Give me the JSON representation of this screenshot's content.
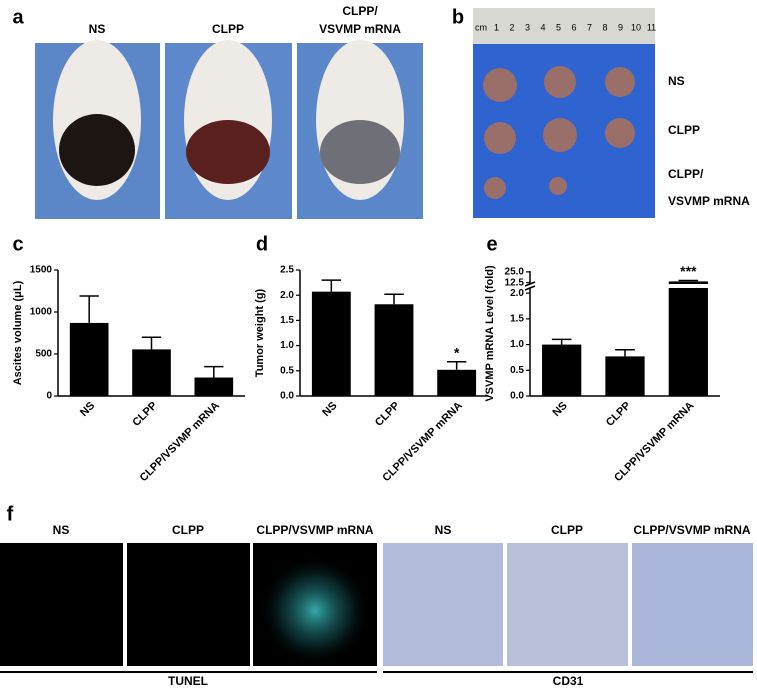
{
  "panels": {
    "letters": [
      "a",
      "b",
      "c",
      "d",
      "e",
      "f"
    ],
    "a_labels": [
      "NS",
      "CLPP",
      "CLPP/",
      "VSVMP mRNA"
    ],
    "b_labels": [
      "NS",
      "CLPP",
      "CLPP/",
      "VSVMP mRNA"
    ],
    "ruler": [
      "cm",
      "1",
      "2",
      "3",
      "4",
      "5",
      "6",
      "7",
      "8",
      "9",
      "10",
      "11"
    ],
    "f_labels": [
      "NS",
      "CLPP",
      "CLPP/VSVMP mRNA",
      "NS",
      "CLPP",
      "CLPP/VSVMP mRNA"
    ],
    "f_groups": [
      "TUNEL",
      "CD31"
    ]
  },
  "chart_data": [
    {
      "type": "bar",
      "y_label": "Ascites volume (μL)",
      "categories": [
        "NS",
        "CLPP",
        "CLPP/VSVMP mRNA"
      ],
      "values": [
        870,
        555,
        220
      ],
      "errors": [
        320,
        145,
        130
      ],
      "color": "#000000",
      "ylim": [
        0,
        1500
      ],
      "yticks": [
        0,
        500,
        1000,
        1500
      ]
    },
    {
      "type": "bar",
      "y_label": "Tumor weight (g)",
      "categories": [
        "NS",
        "CLPP",
        "CLPP/VSVMP mRNA"
      ],
      "values": [
        2.07,
        1.82,
        0.52
      ],
      "errors": [
        0.23,
        0.2,
        0.16
      ],
      "color": "#000000",
      "value_annotations": [
        null,
        null,
        "*"
      ],
      "ylim": [
        0,
        2.5
      ],
      "yticks": [
        {
          "value": 0,
          "label": "0.0"
        },
        0.5,
        {
          "value": 1,
          "label": "1.0"
        },
        1.5,
        {
          "value": 2,
          "label": "2.0"
        },
        2.5
      ]
    },
    {
      "type": "bar",
      "y_label": "VSVMP mRNA Level (fold)",
      "categories": [
        "NS",
        "CLPP",
        "CLPP/VSVMP mRNA"
      ],
      "values": [
        1.0,
        0.77,
        14
      ],
      "errors": [
        0.1,
        0.13,
        1
      ],
      "color": "#000000",
      "value_annotations": [
        null,
        null,
        "***"
      ],
      "ylim": [
        0,
        26
      ],
      "ybreak": [
        2.1,
        11
      ],
      "yticks": [
        {
          "value": 0,
          "label": "0.0"
        },
        0.5,
        {
          "value": 1,
          "label": "1.0"
        },
        1.5,
        {
          "value": 2,
          "label": "2.0"
        },
        12.5,
        {
          "value": 25,
          "label": "25.0"
        }
      ]
    }
  ]
}
